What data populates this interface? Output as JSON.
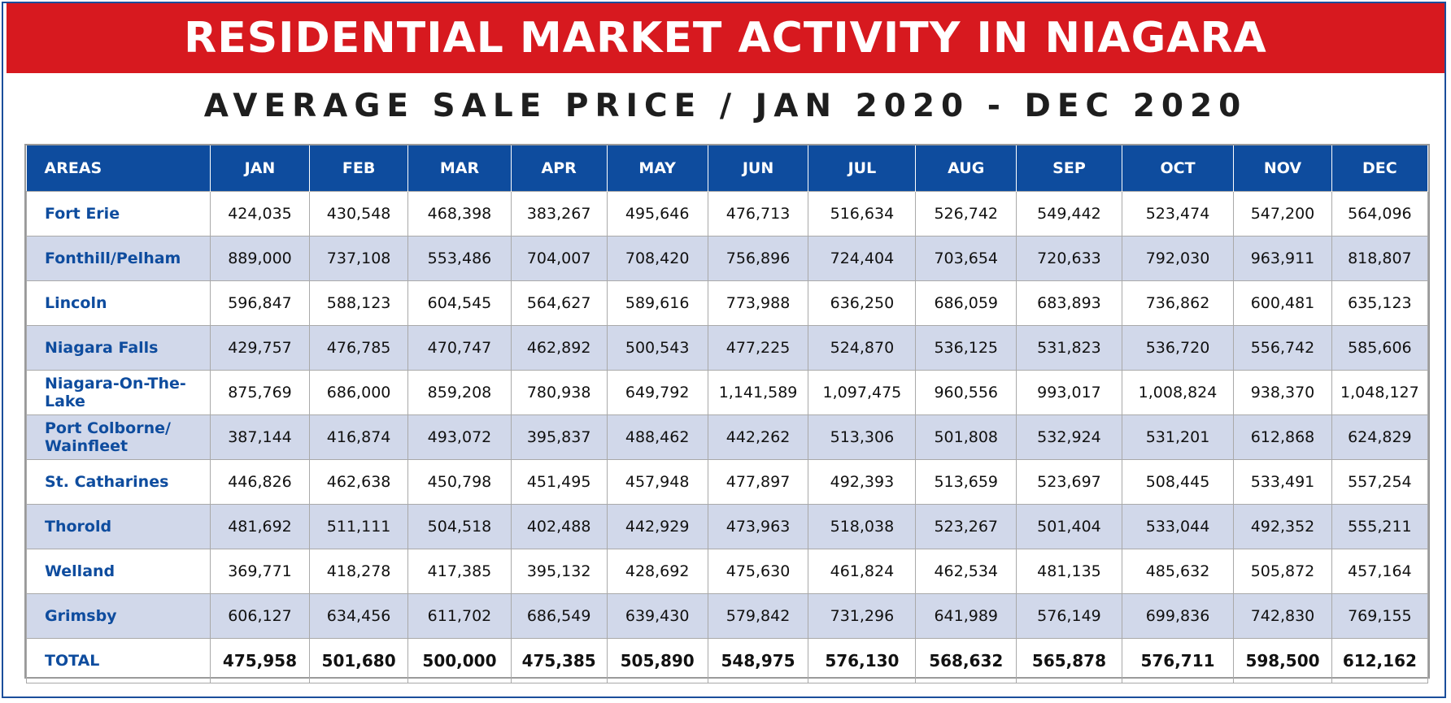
{
  "title": "RESIDENTIAL MARKET ACTIVITY IN NIAGARA",
  "subtitle": "AVERAGE SALE PRICE / JAN 2020 - DEC 2020",
  "colors": {
    "banner": "#d7191f",
    "header": "#0e4c9e",
    "alt_row": "#d1d8ea",
    "area_text": "#0e4c9e"
  },
  "chart_data": {
    "type": "table",
    "title": "RESIDENTIAL MARKET ACTIVITY IN NIAGARA",
    "subtitle": "AVERAGE SALE PRICE / JAN 2020 - DEC 2020",
    "columns": [
      "AREAS",
      "JAN",
      "FEB",
      "MAR",
      "APR",
      "MAY",
      "JUN",
      "JUL",
      "AUG",
      "SEP",
      "OCT",
      "NOV",
      "DEC"
    ],
    "rows": [
      {
        "area": "Fort Erie",
        "values": [
          "424,035",
          "430,548",
          "468,398",
          "383,267",
          "495,646",
          "476,713",
          "516,634",
          "526,742",
          "549,442",
          "523,474",
          "547,200",
          "564,096"
        ]
      },
      {
        "area": "Fonthill/Pelham",
        "values": [
          "889,000",
          "737,108",
          "553,486",
          "704,007",
          "708,420",
          "756,896",
          "724,404",
          "703,654",
          "720,633",
          "792,030",
          "963,911",
          "818,807"
        ]
      },
      {
        "area": "Lincoln",
        "values": [
          "596,847",
          "588,123",
          "604,545",
          "564,627",
          "589,616",
          "773,988",
          "636,250",
          "686,059",
          "683,893",
          "736,862",
          "600,481",
          "635,123"
        ]
      },
      {
        "area": "Niagara Falls",
        "values": [
          "429,757",
          "476,785",
          "470,747",
          "462,892",
          "500,543",
          "477,225",
          "524,870",
          "536,125",
          "531,823",
          "536,720",
          "556,742",
          "585,606"
        ]
      },
      {
        "area": "Niagara-On-The-Lake",
        "values": [
          "875,769",
          "686,000",
          "859,208",
          "780,938",
          "649,792",
          "1,141,589",
          "1,097,475",
          "960,556",
          "993,017",
          "1,008,824",
          "938,370",
          "1,048,127"
        ]
      },
      {
        "area": "Port Colborne/ Wainfleet",
        "values": [
          "387,144",
          "416,874",
          "493,072",
          "395,837",
          "488,462",
          "442,262",
          "513,306",
          "501,808",
          "532,924",
          "531,201",
          "612,868",
          "624,829"
        ]
      },
      {
        "area": "St. Catharines",
        "values": [
          "446,826",
          "462,638",
          "450,798",
          "451,495",
          "457,948",
          "477,897",
          "492,393",
          "513,659",
          "523,697",
          "508,445",
          "533,491",
          "557,254"
        ]
      },
      {
        "area": "Thorold",
        "values": [
          "481,692",
          "511,111",
          "504,518",
          "402,488",
          "442,929",
          "473,963",
          "518,038",
          "523,267",
          "501,404",
          "533,044",
          "492,352",
          "555,211"
        ]
      },
      {
        "area": "Welland",
        "values": [
          "369,771",
          "418,278",
          "417,385",
          "395,132",
          "428,692",
          "475,630",
          "461,824",
          "462,534",
          "481,135",
          "485,632",
          "505,872",
          "457,164"
        ]
      },
      {
        "area": "Grimsby",
        "values": [
          "606,127",
          "634,456",
          "611,702",
          "686,549",
          "639,430",
          "579,842",
          "731,296",
          "641,989",
          "576,149",
          "699,836",
          "742,830",
          "769,155"
        ]
      }
    ],
    "total": {
      "area": "TOTAL",
      "values": [
        "475,958",
        "501,680",
        "500,000",
        "475,385",
        "505,890",
        "548,975",
        "576,130",
        "568,632",
        "565,878",
        "576,711",
        "598,500",
        "612,162"
      ]
    }
  }
}
